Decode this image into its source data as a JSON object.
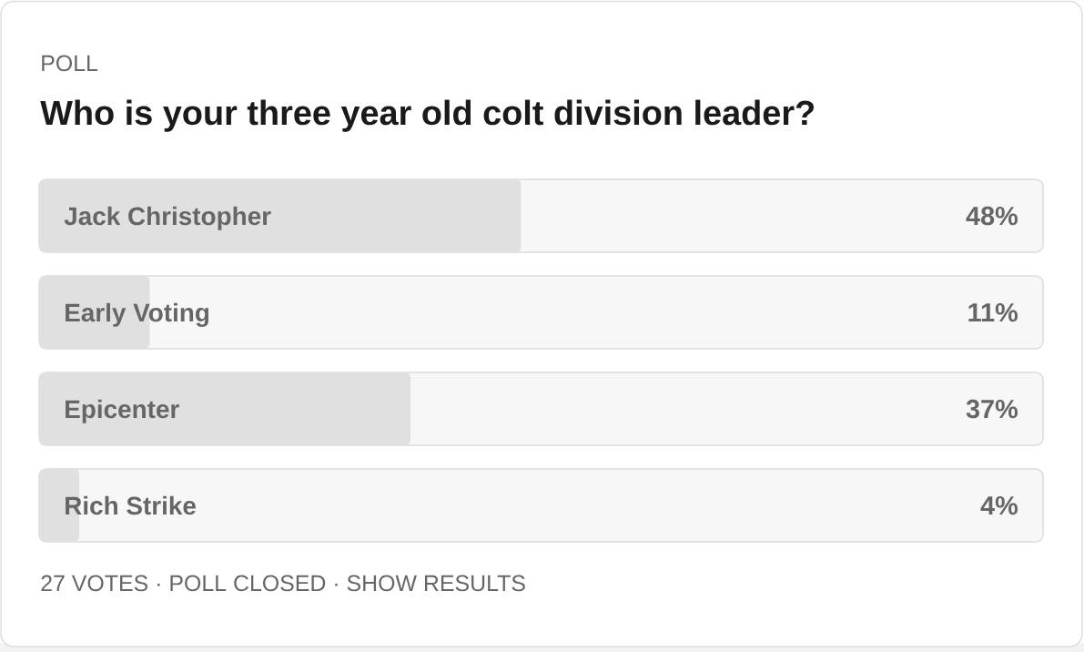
{
  "chart_data": {
    "type": "bar",
    "orientation": "horizontal",
    "title": "Who is your three year old colt division leader?",
    "categories": [
      "Jack Christopher",
      "Early Voting",
      "Epicenter",
      "Rich Strike"
    ],
    "values": [
      48,
      11,
      37,
      4
    ],
    "value_labels": [
      "48%",
      "11%",
      "37%",
      "4%"
    ],
    "color": "#e0e0e0",
    "xlim": [
      0,
      100
    ],
    "tick_labels": "y",
    "annotations": [
      "POLL",
      "27 VOTES · POLL CLOSED · SHOW RESULTS"
    ]
  }
}
